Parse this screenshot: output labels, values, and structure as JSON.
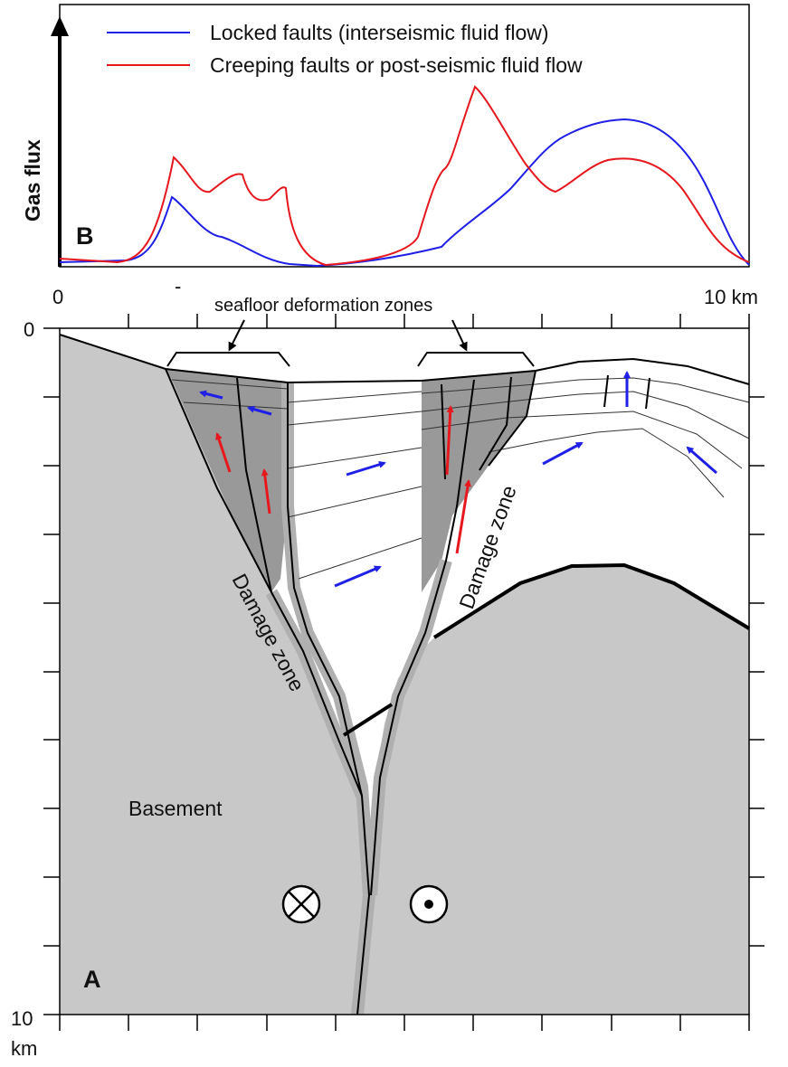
{
  "panel_b": {
    "label": "B",
    "y_axis_label": "Gas flux",
    "legend": [
      {
        "text": "Locked faults (interseismic fluid flow)",
        "color": "#1f1fe6"
      },
      {
        "text": "Creeping faults or post-seismic fluid flow",
        "color": "#e6181e"
      }
    ]
  },
  "panel_a": {
    "label": "A",
    "x_axis": {
      "start": "0",
      "end": "10 km",
      "mark": "-"
    },
    "y_axis": {
      "top": "0",
      "bottom": "10",
      "unit": "km"
    },
    "annotation_seafloor": "seafloor deformation zones",
    "damage_zone_left": "Damage zone",
    "damage_zone_right": "Damage zone",
    "basement": "Basement"
  },
  "colors": {
    "basement": "#c8c8c8",
    "damage_zone": "#999999",
    "fault_halo": "#b0b0b0",
    "fluid_arrow_blue": "#1f1fe6",
    "fluid_arrow_red": "#e6181e"
  },
  "icons": [
    "into-page-cross-icon",
    "out-of-page-dot-icon"
  ]
}
